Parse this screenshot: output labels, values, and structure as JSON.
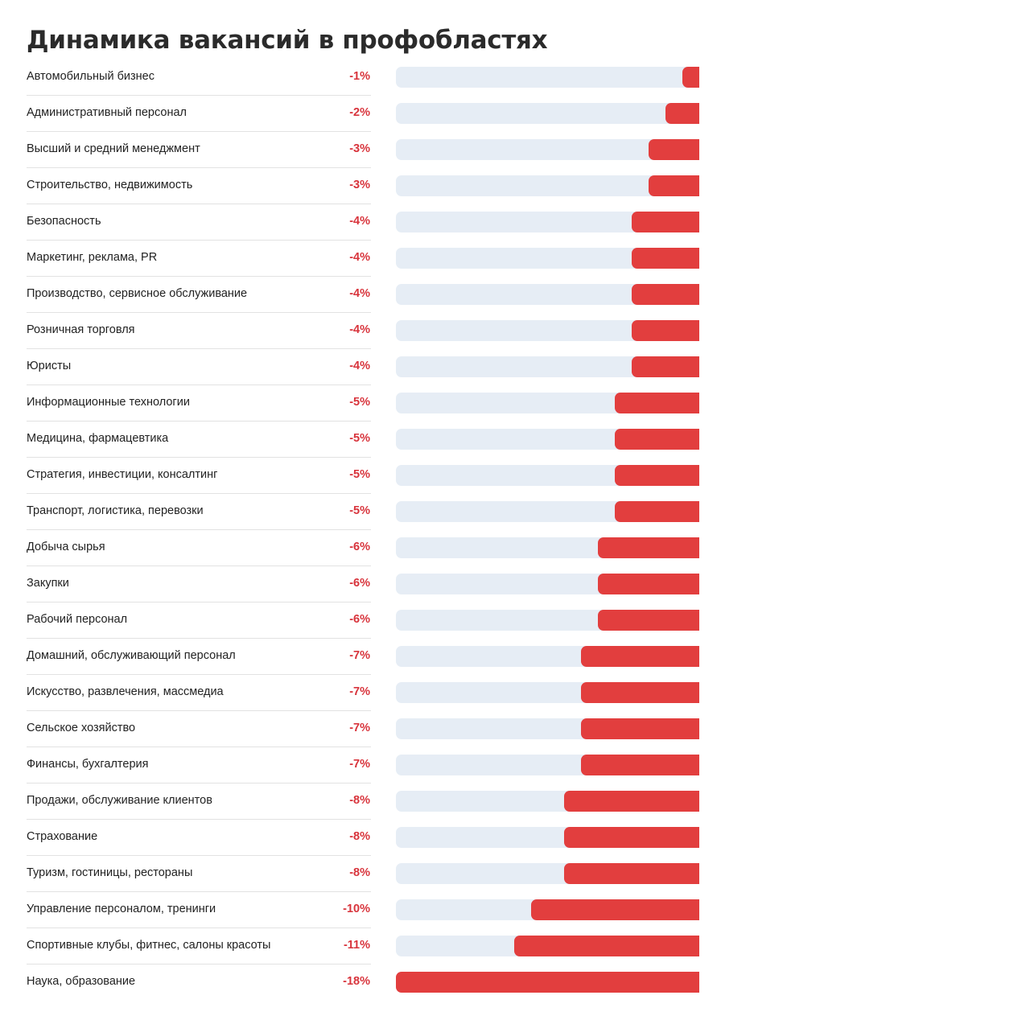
{
  "chart_data": {
    "type": "bar",
    "orientation": "horizontal",
    "title": "Динамика вакансий в профобластях",
    "unit": "%",
    "xlim": [
      -18,
      0
    ],
    "grid": false,
    "colors": {
      "bar": "#e23e3e",
      "track": "#e6edf5",
      "value_label": "#d8343c"
    },
    "categories": [
      "Автомобильный бизнес",
      "Административный персонал",
      "Высший и средний менеджмент",
      "Строительство, недвижимость",
      "Безопасность",
      "Маркетинг, реклама, PR",
      "Производство, сервисное обслуживание",
      "Розничная торговля",
      "Юристы",
      "Информационные технологии",
      "Медицина, фармацевтика",
      "Стратегия, инвестиции, консалтинг",
      "Транспорт, логистика, перевозки",
      "Добыча сырья",
      "Закупки",
      "Рабочий персонал",
      "Домашний, обслуживающий персонал",
      "Искусство, развлечения, массмедиа",
      "Сельское хозяйство",
      "Финансы, бухгалтерия",
      "Продажи, обслуживание клиентов",
      "Страхование",
      "Туризм, гостиницы, рестораны",
      "Управление персоналом, тренинги",
      "Спортивные клубы, фитнес, салоны красоты",
      "Наука, образование"
    ],
    "values": [
      -1,
      -2,
      -3,
      -3,
      -4,
      -4,
      -4,
      -4,
      -4,
      -5,
      -5,
      -5,
      -5,
      -6,
      -6,
      -6,
      -7,
      -7,
      -7,
      -7,
      -8,
      -8,
      -8,
      -10,
      -11,
      -18
    ],
    "value_labels": [
      "-1%",
      "-2%",
      "-3%",
      "-3%",
      "-4%",
      "-4%",
      "-4%",
      "-4%",
      "-4%",
      "-5%",
      "-5%",
      "-5%",
      "-5%",
      "-6%",
      "-6%",
      "-6%",
      "-7%",
      "-7%",
      "-7%",
      "-7%",
      "-8%",
      "-8%",
      "-8%",
      "-10%",
      "-11%",
      "-18%"
    ]
  }
}
